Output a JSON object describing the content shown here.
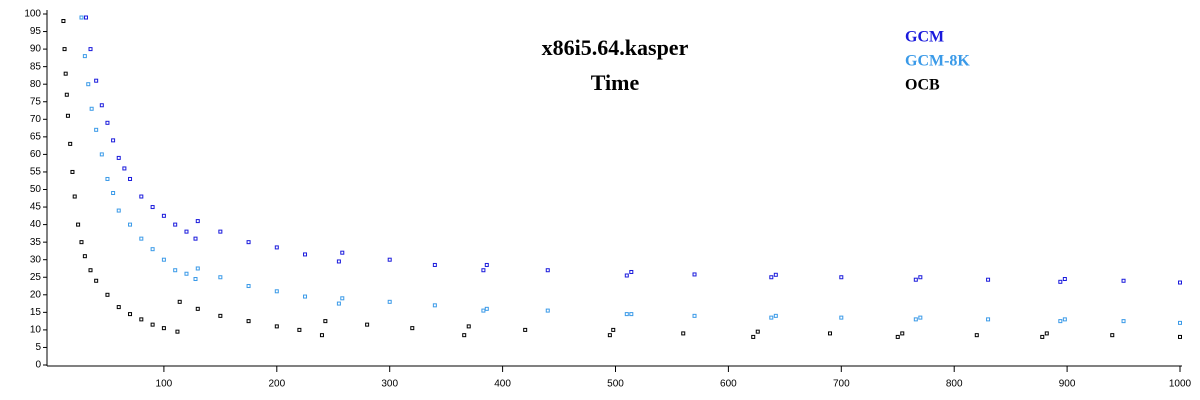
{
  "chart_data": {
    "type": "scatter",
    "title": "x86i5.64.kasper",
    "subtitle": "Time",
    "xlim": [
      0,
      1000
    ],
    "ylim": [
      0,
      100
    ],
    "xticks": [
      100,
      200,
      300,
      400,
      500,
      600,
      700,
      800,
      900,
      1000
    ],
    "yticks": [
      0,
      5,
      10,
      15,
      20,
      25,
      30,
      35,
      40,
      45,
      50,
      55,
      60,
      65,
      70,
      75,
      80,
      85,
      90,
      95,
      100
    ],
    "legend": "upper right",
    "series": [
      {
        "name": "GCM",
        "color": "#1a1adc",
        "x": [
          31,
          35,
          40,
          45,
          50,
          55,
          60,
          65,
          70,
          80,
          90,
          100,
          110,
          120,
          128,
          130,
          150,
          175,
          200,
          225,
          255,
          258,
          300,
          340,
          383,
          386,
          440,
          510,
          514,
          570,
          638,
          642,
          700,
          766,
          770,
          830,
          894,
          898,
          950,
          1000
        ],
        "values": [
          99,
          90,
          81,
          74,
          69,
          64,
          59,
          56,
          53,
          48,
          45,
          42.5,
          40,
          38,
          36,
          41,
          38,
          35,
          33.5,
          31.5,
          29.5,
          32,
          30,
          28.5,
          27,
          28.5,
          27,
          25.5,
          26.5,
          25.8,
          25,
          25.7,
          25,
          24.3,
          25,
          24.3,
          23.7,
          24.5,
          24,
          23.5
        ]
      },
      {
        "name": "GCM-8K",
        "color": "#3a9ae8",
        "x": [
          27,
          30,
          33,
          36,
          40,
          45,
          50,
          55,
          60,
          70,
          80,
          90,
          100,
          110,
          120,
          128,
          130,
          150,
          175,
          200,
          225,
          255,
          258,
          300,
          340,
          383,
          386,
          440,
          510,
          514,
          570,
          638,
          642,
          700,
          766,
          770,
          830,
          894,
          898,
          950,
          1000
        ],
        "values": [
          99,
          88,
          80,
          73,
          67,
          60,
          53,
          49,
          44,
          40,
          36,
          33,
          30,
          27,
          26,
          24.5,
          27.5,
          25,
          22.5,
          21,
          19.5,
          17.5,
          19,
          18,
          17,
          15.5,
          16,
          15.5,
          14.5,
          14.5,
          14,
          13.5,
          14,
          13.5,
          13,
          13.5,
          13,
          12.5,
          13,
          12.5,
          12
        ]
      },
      {
        "name": "OCB",
        "color": "#000000",
        "x": [
          11,
          12,
          13,
          14,
          15,
          17,
          19,
          21,
          24,
          27,
          30,
          35,
          40,
          50,
          60,
          70,
          80,
          90,
          100,
          112,
          114,
          130,
          150,
          175,
          200,
          220,
          240,
          243,
          280,
          320,
          366,
          370,
          420,
          495,
          498,
          560,
          622,
          626,
          690,
          750,
          754,
          820,
          878,
          882,
          940,
          1000
        ],
        "values": [
          98,
          90,
          83,
          77,
          71,
          63,
          55,
          48,
          40,
          35,
          31,
          27,
          24,
          20,
          16.5,
          14.5,
          13,
          11.5,
          10.5,
          9.5,
          18,
          16,
          14,
          12.5,
          11,
          10,
          8.5,
          12.5,
          11.5,
          10.5,
          8.5,
          11,
          10,
          8.5,
          10,
          9,
          8,
          9.5,
          9,
          8,
          9,
          8.5,
          8,
          9,
          8.5,
          8
        ]
      }
    ]
  }
}
